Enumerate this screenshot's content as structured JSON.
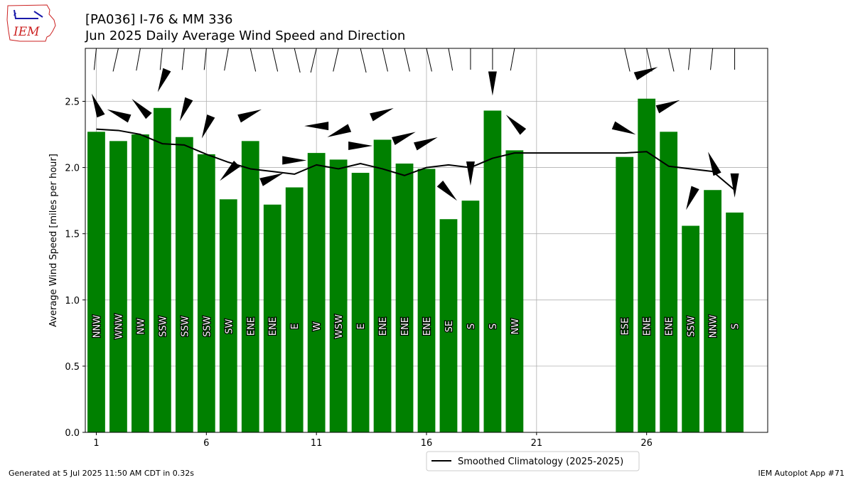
{
  "header": {
    "title": "[PA036] I-76 & MM 336",
    "subtitle": "Jun 2025 Daily Average Wind Speed and Direction"
  },
  "logo": {
    "text": "IEM"
  },
  "footer": {
    "generated": "Generated at 5 Jul 2025 11:50 AM CDT in 0.32s",
    "app": "IEM Autoplot App #71"
  },
  "colors": {
    "bar": "#008000",
    "climatology": "#000000",
    "grid": "#b0b0b0",
    "logo_red": "#cc2222",
    "logo_blue": "#1a1aaa"
  },
  "chart_data": {
    "type": "bar",
    "ylabel": "Average Wind Speed [miles per hour]",
    "ylim": [
      0,
      2.9
    ],
    "xlim": [
      0.5,
      31.5
    ],
    "xticks": [
      1,
      6,
      11,
      16,
      21,
      26
    ],
    "yticks": [
      0.0,
      0.5,
      1.0,
      1.5,
      2.0,
      2.5
    ],
    "ytick_labels": [
      "0.0",
      "0.5",
      "1.0",
      "1.5",
      "2.0",
      "2.5"
    ],
    "grid": true,
    "legend_position": "lower center",
    "days": [
      1,
      2,
      3,
      4,
      5,
      6,
      7,
      8,
      9,
      10,
      11,
      12,
      13,
      14,
      15,
      16,
      17,
      18,
      19,
      20,
      25,
      26,
      27,
      28,
      29,
      30
    ],
    "speed": [
      2.27,
      2.2,
      2.25,
      2.45,
      2.23,
      2.1,
      1.76,
      2.2,
      1.72,
      1.85,
      2.11,
      2.06,
      1.96,
      2.21,
      2.03,
      1.99,
      1.61,
      1.75,
      2.43,
      2.13,
      2.08,
      2.52,
      2.27,
      1.56,
      1.83,
      1.66
    ],
    "direction": [
      "NNW",
      "WNW",
      "NW",
      "SSW",
      "SSW",
      "SSW",
      "SW",
      "ENE",
      "ENE",
      "E",
      "W",
      "WSW",
      "E",
      "ENE",
      "ENE",
      "ENE",
      "SE",
      "S",
      "S",
      "NW",
      "ESE",
      "ENE",
      "ENE",
      "SSW",
      "NNW",
      "S"
    ],
    "series": [
      {
        "name": "Smoothed Climatology (2025-2025)",
        "x": [
          1,
          2,
          3,
          4,
          5,
          6,
          7,
          8,
          9,
          10,
          11,
          12,
          13,
          14,
          15,
          16,
          17,
          18,
          19,
          20,
          25,
          26,
          27,
          28,
          29,
          30
        ],
        "values": [
          2.29,
          2.28,
          2.25,
          2.18,
          2.17,
          2.1,
          2.04,
          1.99,
          1.97,
          1.95,
          2.02,
          1.99,
          2.03,
          1.99,
          1.94,
          2.0,
          2.02,
          2.0,
          2.07,
          2.11,
          2.11,
          2.12,
          2.01,
          1.99,
          1.97,
          1.83
        ]
      }
    ]
  }
}
